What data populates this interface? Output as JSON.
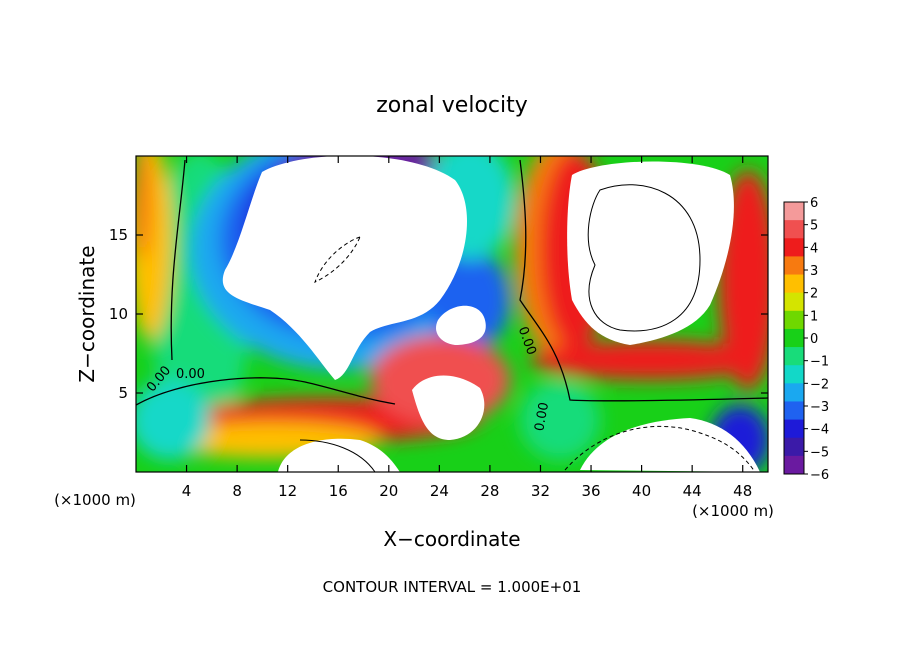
{
  "chart_data": {
    "type": "heatmap",
    "title": "zonal velocity",
    "xlabel": "X−coordinate",
    "ylabel": "Z−coordinate",
    "x_unit_left": "(×1000 m)",
    "x_unit_right": "(×1000 m)",
    "footer": "CONTOUR INTERVAL = 1.000E+01",
    "xlim": [
      0,
      50
    ],
    "ylim": [
      0,
      20
    ],
    "x_ticks": [
      4,
      8,
      12,
      16,
      20,
      24,
      28,
      32,
      36,
      40,
      44,
      48
    ],
    "y_ticks": [
      5,
      10,
      15
    ],
    "colorbar": {
      "levels": [
        6,
        5,
        4,
        3,
        2,
        1,
        0,
        -1,
        -2,
        -3,
        -4,
        -5,
        -6
      ],
      "colors": [
        "#f49a9a",
        "#f05050",
        "#ee1c1c",
        "#f77a10",
        "#ffbf00",
        "#d4e400",
        "#6fd800",
        "#18d018",
        "#18dc7a",
        "#12d8c8",
        "#1aa8f0",
        "#1f62f0",
        "#1e1ad8",
        "#3b1aa8",
        "#6a1aa0"
      ]
    },
    "contour_labels": [
      "0.00",
      "0.00",
      "0.00",
      "0.00"
    ]
  }
}
